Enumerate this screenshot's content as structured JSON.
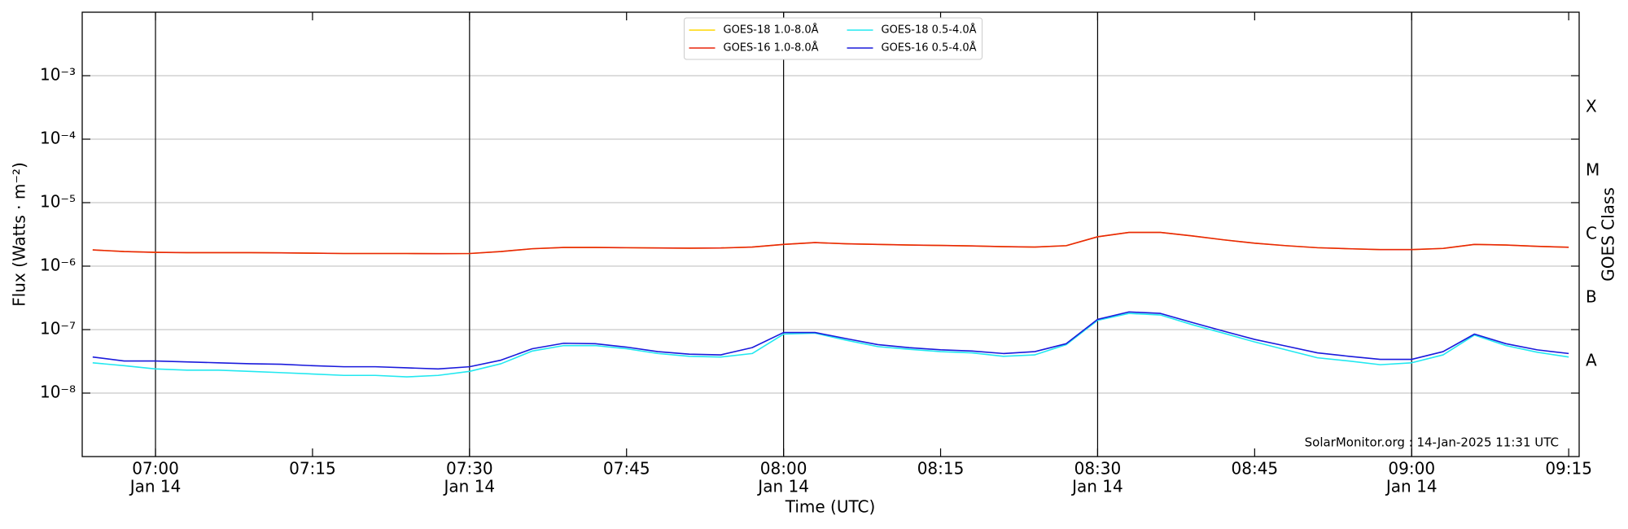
{
  "chart_data": {
    "type": "line",
    "xlabel": "Time (UTC)",
    "ylabel": "Flux (Watts · m⁻²)",
    "y2label": "GOES Class",
    "annotation": "SolarMonitor.org : 14-Jan-2025 11:31 UTC",
    "log_y": true,
    "grid": true,
    "legend": "upper center",
    "xlim": [
      "06:53",
      "09:16"
    ],
    "xticks": [
      {
        "value": "07:00",
        "label": [
          "07:00",
          "Jan 14"
        ]
      },
      "07:15",
      {
        "value": "07:30",
        "label": [
          "07:30",
          "Jan 14"
        ]
      },
      "07:45",
      {
        "value": "08:00",
        "label": [
          "08:00",
          "Jan 14"
        ]
      },
      "08:15",
      {
        "value": "08:30",
        "label": [
          "08:30",
          "Jan 14"
        ]
      },
      "08:45",
      {
        "value": "09:00",
        "label": [
          "09:00",
          "Jan 14"
        ]
      },
      "09:15"
    ],
    "ylim": [
      1e-09,
      0.01
    ],
    "yticks": [
      {
        "value": 1e-08,
        "label": "10⁻⁸"
      },
      {
        "value": 1e-07,
        "label": "10⁻⁷"
      },
      {
        "value": 1e-06,
        "label": "10⁻⁶"
      },
      {
        "value": 1e-05,
        "label": "10⁻⁵"
      },
      {
        "value": 0.0001,
        "label": "10⁻⁴"
      },
      {
        "value": 0.001,
        "label": "10⁻³"
      }
    ],
    "y2lim": [
      1e-09,
      0.01
    ],
    "y2ticks": [
      {
        "value": 3.162e-08,
        "label": "A"
      },
      {
        "value": 3.162e-07,
        "label": "B"
      },
      {
        "value": 3.162e-06,
        "label": "C"
      },
      {
        "value": 3.162e-05,
        "label": "M"
      },
      {
        "value": 0.0003162,
        "label": "X"
      }
    ],
    "x": [
      "06:54",
      "06:57",
      "07:00",
      "07:03",
      "07:06",
      "07:09",
      "07:12",
      "07:15",
      "07:18",
      "07:21",
      "07:24",
      "07:27",
      "07:30",
      "07:33",
      "07:36",
      "07:39",
      "07:42",
      "07:45",
      "07:48",
      "07:51",
      "07:54",
      "07:57",
      "08:00",
      "08:03",
      "08:06",
      "08:09",
      "08:12",
      "08:15",
      "08:18",
      "08:21",
      "08:24",
      "08:27",
      "08:30",
      "08:33",
      "08:36",
      "08:39",
      "08:42",
      "08:45",
      "08:48",
      "08:51",
      "08:54",
      "08:57",
      "09:00",
      "09:03",
      "09:06",
      "09:09",
      "09:12",
      "09:15"
    ],
    "series": [
      {
        "name": "GOES-18 1.0-8.0Å",
        "color": "#ffd700",
        "values": [
          1.8e-06,
          1.7e-06,
          1.65e-06,
          1.63e-06,
          1.63e-06,
          1.63e-06,
          1.62e-06,
          1.6e-06,
          1.58e-06,
          1.58e-06,
          1.58e-06,
          1.57e-06,
          1.58e-06,
          1.7e-06,
          1.88e-06,
          1.97e-06,
          1.97e-06,
          1.95e-06,
          1.93e-06,
          1.92e-06,
          1.93e-06,
          2e-06,
          2.2e-06,
          2.35e-06,
          2.25e-06,
          2.2e-06,
          2.15e-06,
          2.12e-06,
          2.08e-06,
          2.03e-06,
          2e-06,
          2.1e-06,
          2.9e-06,
          3.4e-06,
          3.4e-06,
          3e-06,
          2.6e-06,
          2.3e-06,
          2.1e-06,
          1.95e-06,
          1.88e-06,
          1.82e-06,
          1.82e-06,
          1.9e-06,
          2.2e-06,
          2.15e-06,
          2.05e-06,
          1.98e-06
        ]
      },
      {
        "name": "GOES-16 1.0-8.0Å",
        "color": "#e8250c",
        "values": [
          1.8e-06,
          1.7e-06,
          1.65e-06,
          1.63e-06,
          1.63e-06,
          1.63e-06,
          1.62e-06,
          1.6e-06,
          1.58e-06,
          1.58e-06,
          1.58e-06,
          1.57e-06,
          1.58e-06,
          1.7e-06,
          1.88e-06,
          1.97e-06,
          1.97e-06,
          1.95e-06,
          1.93e-06,
          1.92e-06,
          1.93e-06,
          2e-06,
          2.2e-06,
          2.35e-06,
          2.25e-06,
          2.2e-06,
          2.15e-06,
          2.12e-06,
          2.08e-06,
          2.03e-06,
          2e-06,
          2.1e-06,
          2.9e-06,
          3.4e-06,
          3.4e-06,
          3e-06,
          2.6e-06,
          2.3e-06,
          2.1e-06,
          1.95e-06,
          1.88e-06,
          1.82e-06,
          1.82e-06,
          1.9e-06,
          2.2e-06,
          2.15e-06,
          2.05e-06,
          1.98e-06
        ]
      },
      {
        "name": "GOES-18 0.5-4.0Å",
        "color": "#22e8f0",
        "values": [
          3e-08,
          2.7e-08,
          2.4e-08,
          2.3e-08,
          2.3e-08,
          2.2e-08,
          2.1e-08,
          2e-08,
          1.9e-08,
          1.9e-08,
          1.8e-08,
          1.9e-08,
          2.2e-08,
          2.9e-08,
          4.6e-08,
          5.6e-08,
          5.6e-08,
          5e-08,
          4.2e-08,
          3.8e-08,
          3.7e-08,
          4.2e-08,
          8.5e-08,
          8.8e-08,
          6.8e-08,
          5.4e-08,
          4.9e-08,
          4.5e-08,
          4.3e-08,
          3.8e-08,
          4e-08,
          5.8e-08,
          1.4e-07,
          1.8e-07,
          1.7e-07,
          1.2e-07,
          8.8e-08,
          6.4e-08,
          4.8e-08,
          3.6e-08,
          3.2e-08,
          2.8e-08,
          3e-08,
          4e-08,
          8.2e-08,
          5.6e-08,
          4.4e-08,
          3.7e-08
        ]
      },
      {
        "name": "GOES-16 0.5-4.0Å",
        "color": "#1a1adc",
        "values": [
          3.7e-08,
          3.2e-08,
          3.2e-08,
          3.1e-08,
          3e-08,
          2.9e-08,
          2.85e-08,
          2.7e-08,
          2.6e-08,
          2.6e-08,
          2.5e-08,
          2.4e-08,
          2.6e-08,
          3.3e-08,
          5e-08,
          6.1e-08,
          6e-08,
          5.3e-08,
          4.5e-08,
          4.1e-08,
          4e-08,
          5.2e-08,
          9e-08,
          9e-08,
          7.2e-08,
          5.8e-08,
          5.2e-08,
          4.8e-08,
          4.6e-08,
          4.2e-08,
          4.5e-08,
          6e-08,
          1.45e-07,
          1.9e-07,
          1.8e-07,
          1.3e-07,
          9.5e-08,
          7e-08,
          5.5e-08,
          4.3e-08,
          3.8e-08,
          3.4e-08,
          3.4e-08,
          4.5e-08,
          8.5e-08,
          6e-08,
          4.8e-08,
          4.2e-08
        ]
      }
    ]
  }
}
